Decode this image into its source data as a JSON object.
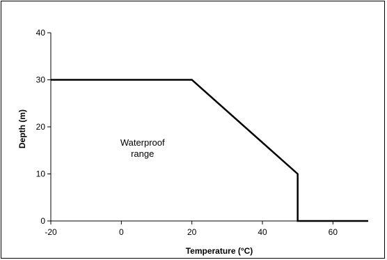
{
  "chart_data": {
    "type": "line",
    "title": "",
    "xlabel": "Temperature (°C)",
    "ylabel": "Depth (m)",
    "xlim": [
      -20,
      70
    ],
    "ylim": [
      0,
      40
    ],
    "x_ticks": [
      -20,
      0,
      20,
      40,
      60
    ],
    "y_ticks": [
      0,
      10,
      20,
      30,
      40
    ],
    "x_tick_labels": [
      "-20",
      "0",
      "20",
      "40",
      "60"
    ],
    "y_tick_labels": [
      "0",
      "10",
      "20",
      "30",
      "40"
    ],
    "grid": false,
    "legend": "none",
    "series": [
      {
        "x": [
          -20,
          20,
          50,
          50,
          70
        ],
        "y": [
          30,
          30,
          10,
          0,
          0
        ],
        "color": "#000000"
      }
    ],
    "annotations": [
      {
        "lines": [
          "Waterproof",
          "range"
        ],
        "x": 6,
        "y": 16
      }
    ]
  }
}
